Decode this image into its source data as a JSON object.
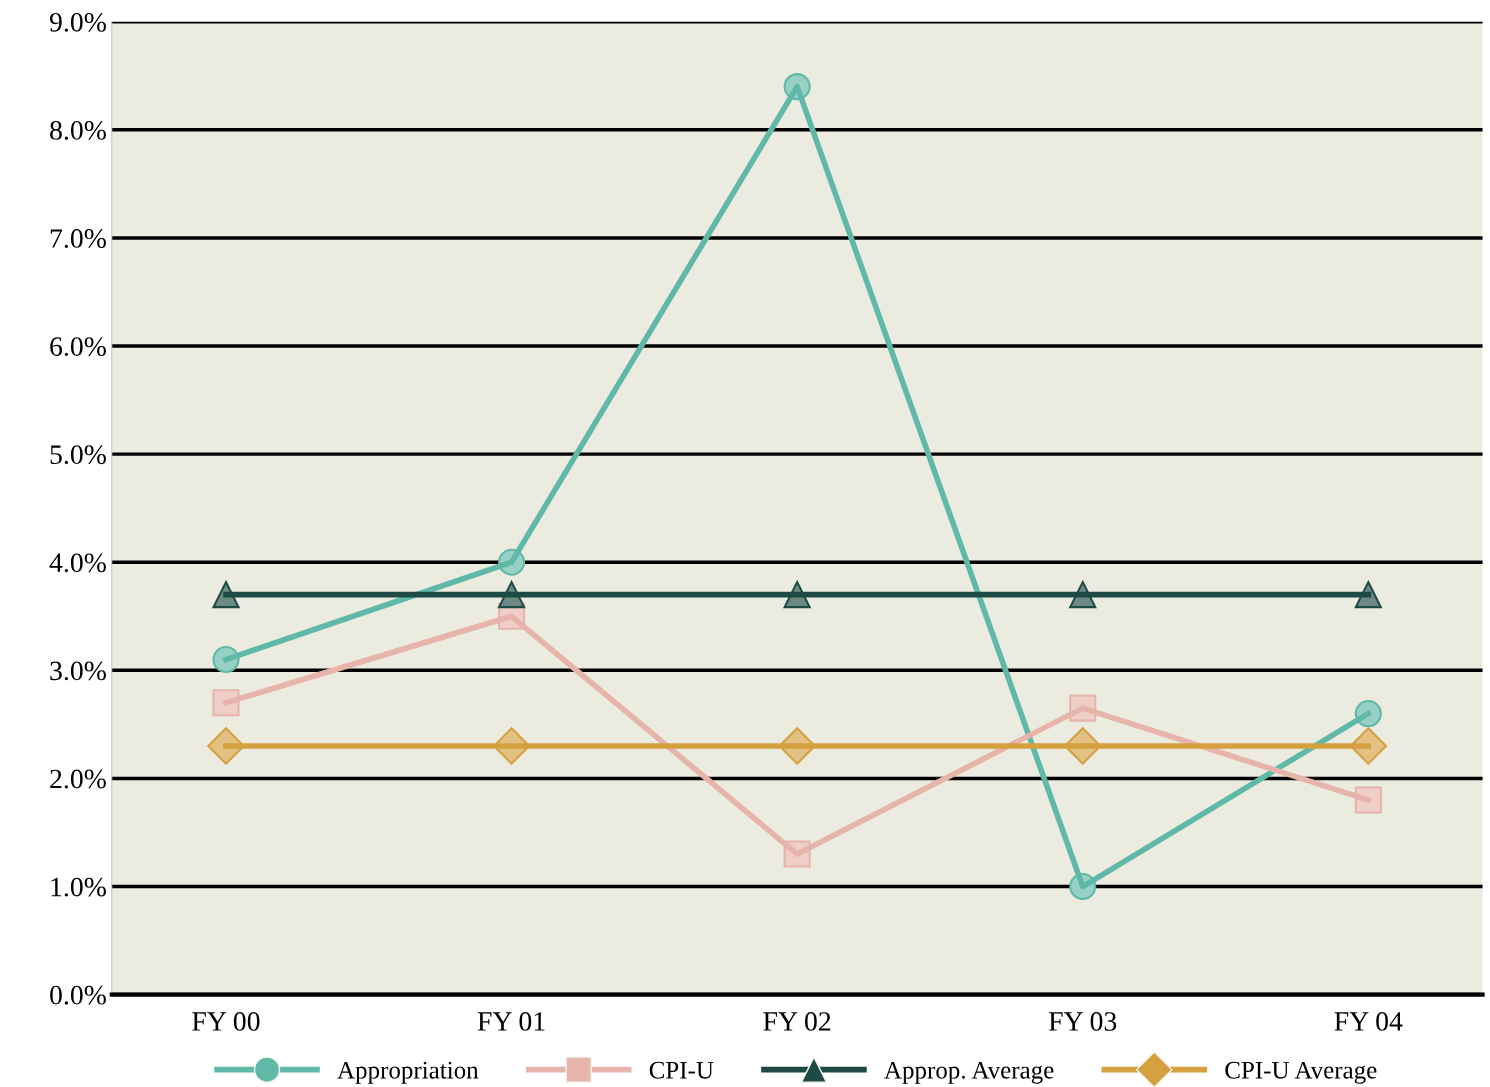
{
  "chart_data": {
    "type": "line",
    "categories": [
      "FY 00",
      "FY 01",
      "FY 02",
      "FY 03",
      "FY 04"
    ],
    "series": [
      {
        "name": "Appropriation",
        "color": "#5fb8a8",
        "marker": "circle",
        "values": [
          3.1,
          4.0,
          8.4,
          1.0,
          2.6
        ]
      },
      {
        "name": "CPI-U",
        "color": "#e6b4ab",
        "marker": "square",
        "values": [
          2.7,
          3.5,
          1.3,
          2.65,
          1.8
        ]
      },
      {
        "name": "Approp. Average",
        "color": "#1d4a44",
        "marker": "triangle",
        "values": [
          3.7,
          3.7,
          3.7,
          3.7,
          3.7
        ]
      },
      {
        "name": "CPI-U Average",
        "color": "#d4a040",
        "marker": "diamond",
        "values": [
          2.3,
          2.3,
          2.3,
          2.3,
          2.3
        ]
      }
    ],
    "ylim": [
      0,
      9
    ],
    "yticks": [
      {
        "value": 0,
        "label": "0.0%"
      },
      {
        "value": 1,
        "label": "1.0%"
      },
      {
        "value": 2,
        "label": "2.0%"
      },
      {
        "value": 3,
        "label": "3.0%"
      },
      {
        "value": 4,
        "label": "4.0%"
      },
      {
        "value": 5,
        "label": "5.0%"
      },
      {
        "value": 6,
        "label": "6.0%"
      },
      {
        "value": 7,
        "label": "7.0%"
      },
      {
        "value": 8,
        "label": "8.0%"
      },
      {
        "value": 9,
        "label": "9.0%"
      }
    ],
    "grid": "y",
    "legend": "bottom",
    "line_style": "solid"
  }
}
